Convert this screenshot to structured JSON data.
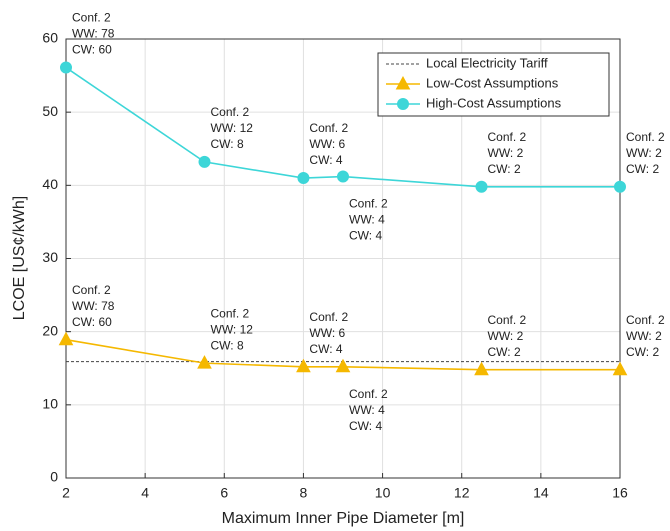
{
  "chart_data": {
    "type": "line",
    "x_label": "Maximum Inner Pipe Diameter [m]",
    "y_label": "LCOE [US¢/kWh]",
    "xlim": [
      2,
      16
    ],
    "xticks": [
      2,
      4,
      6,
      8,
      10,
      12,
      14,
      16
    ],
    "ylim": [
      0,
      60
    ],
    "yticks": [
      0,
      10,
      20,
      30,
      40,
      50,
      60
    ],
    "grid": true,
    "legend": "upper right",
    "reference_line": {
      "name": "Local Electricity Tariff",
      "value": 15.9,
      "color": "#444444"
    },
    "x": [
      2,
      5.5,
      8,
      9,
      12.5,
      16
    ],
    "series": [
      {
        "name": "Low-Cost Assumptions",
        "color": "#f5b800",
        "marker": "triangle",
        "values": [
          18.9,
          15.7,
          15.2,
          15.2,
          14.8,
          14.8
        ],
        "annotations": [
          [
            "Conf. 2",
            "WW: 78",
            "CW: 60"
          ],
          [
            "Conf. 2",
            "WW: 12",
            "CW: 8"
          ],
          [
            "Conf. 2",
            "WW: 6",
            "CW: 4"
          ],
          [
            "Conf. 2",
            "WW: 4",
            "CW: 4"
          ],
          [
            "Conf. 2",
            "WW: 2",
            "CW: 2"
          ],
          [
            "Conf. 2",
            "WW: 2",
            "CW: 2"
          ]
        ]
      },
      {
        "name": "High-Cost Assumptions",
        "color": "#3dd6d8",
        "marker": "circle",
        "values": [
          56.1,
          43.2,
          41.0,
          41.2,
          39.8,
          39.8
        ],
        "annotations": [
          [
            "Conf. 2",
            "WW: 78",
            "CW: 60"
          ],
          [
            "Conf. 2",
            "WW: 12",
            "CW: 8"
          ],
          [
            "Conf. 2",
            "WW: 6",
            "CW: 4"
          ],
          [
            "Conf. 2",
            "WW: 4",
            "CW: 4"
          ],
          [
            "Conf. 2",
            "WW: 2",
            "CW: 2"
          ],
          [
            "Conf. 2",
            "WW: 2",
            "CW: 2"
          ]
        ]
      }
    ]
  }
}
